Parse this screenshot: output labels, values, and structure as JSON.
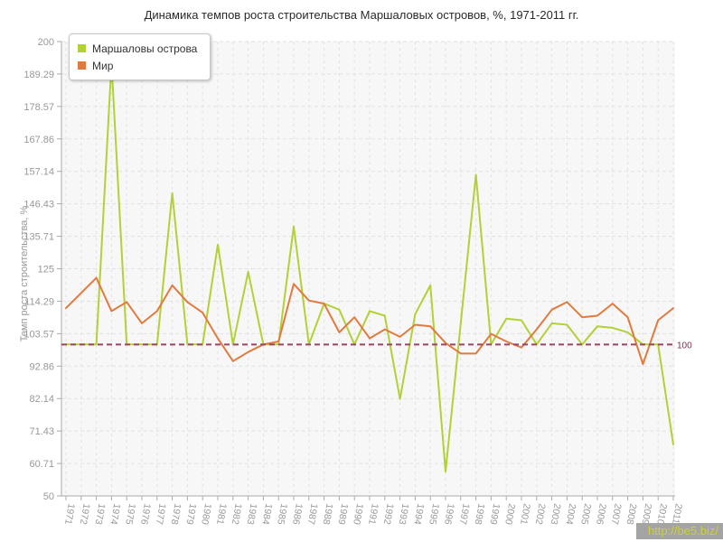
{
  "title": "Динамика темпов роста строительства Маршаловых островов, %, 1971-2011 гг.",
  "watermark": "http://be5.biz/",
  "reference_line": {
    "value": 100,
    "label": "100",
    "color": "#9b4566",
    "label_color": "#7c3047"
  },
  "chart_data": {
    "type": "line",
    "title": "Динамика темпов роста строительства Маршаловых островов, %, 1971-2011 гг.",
    "xlabel": "",
    "ylabel": "Темп роста строительства, %",
    "ylim": [
      50,
      200
    ],
    "grid": true,
    "legend_position": "top-left",
    "y_ticks": [
      "200",
      "189.29",
      "178.57",
      "167.86",
      "157.14",
      "146.43",
      "135.71",
      "125",
      "114.29",
      "103.57",
      "92.86",
      "82.14",
      "71.43",
      "60.71",
      "50"
    ],
    "x": [
      1971,
      1972,
      1973,
      1974,
      1975,
      1976,
      1977,
      1978,
      1979,
      1980,
      1981,
      1982,
      1983,
      1984,
      1985,
      1986,
      1987,
      1988,
      1989,
      1990,
      1991,
      1992,
      1993,
      1994,
      1995,
      1996,
      1997,
      1998,
      1999,
      2000,
      2001,
      2002,
      2003,
      2004,
      2005,
      2006,
      2007,
      2008,
      2009,
      2010,
      2011
    ],
    "series": [
      {
        "name": "Маршаловы острова",
        "color": "#b2d135",
        "values": [
          100,
          100,
          100,
          193,
          100,
          100,
          100,
          150,
          100,
          100,
          133,
          100,
          124,
          100,
          100,
          139,
          100,
          113.5,
          111.5,
          100,
          111,
          109.5,
          82,
          110,
          119.5,
          58,
          107,
          156,
          100,
          108.5,
          108,
          100,
          107,
          106.5,
          100,
          106,
          105.5,
          104,
          100,
          100,
          67
        ]
      },
      {
        "name": "Мир",
        "color": "#e07b3f",
        "values": [
          112,
          117,
          122,
          111,
          114,
          107,
          111,
          119.5,
          114,
          110.5,
          102,
          94.5,
          97.5,
          100,
          101,
          120,
          114.5,
          113.5,
          104,
          109,
          102,
          105,
          102.5,
          106.5,
          106,
          100.5,
          97,
          97,
          103.5,
          101,
          99,
          105,
          111.5,
          114,
          109,
          109.5,
          113.5,
          109,
          93.5,
          108,
          112
        ]
      }
    ]
  }
}
